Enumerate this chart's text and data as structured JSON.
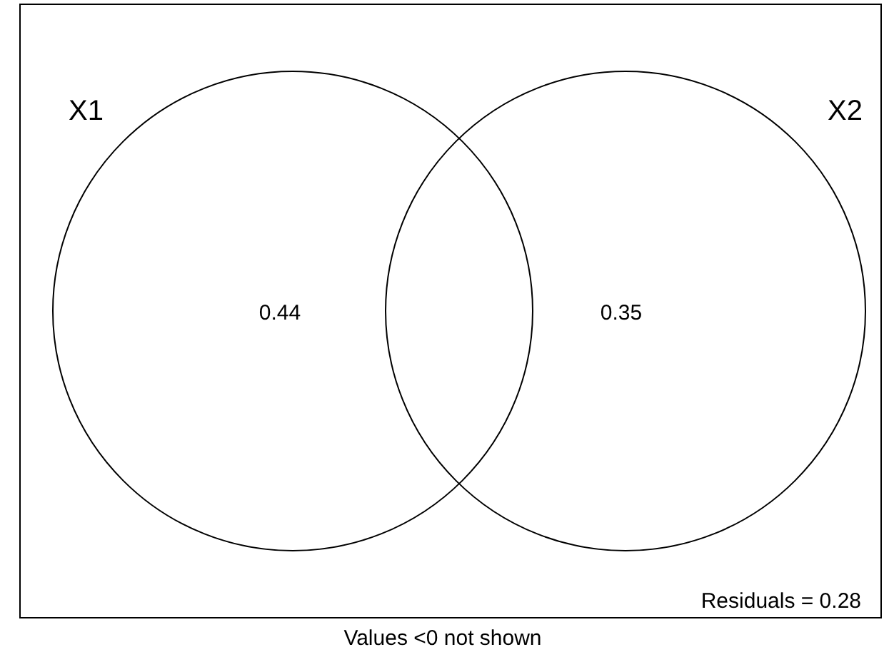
{
  "chart_data": {
    "type": "other",
    "categories": [
      "X1",
      "X2"
    ],
    "values": [
      0.44,
      0.35
    ],
    "data_labels": true,
    "annotations": [
      "Residuals = 0.28",
      "Values <0 not shown"
    ]
  }
}
